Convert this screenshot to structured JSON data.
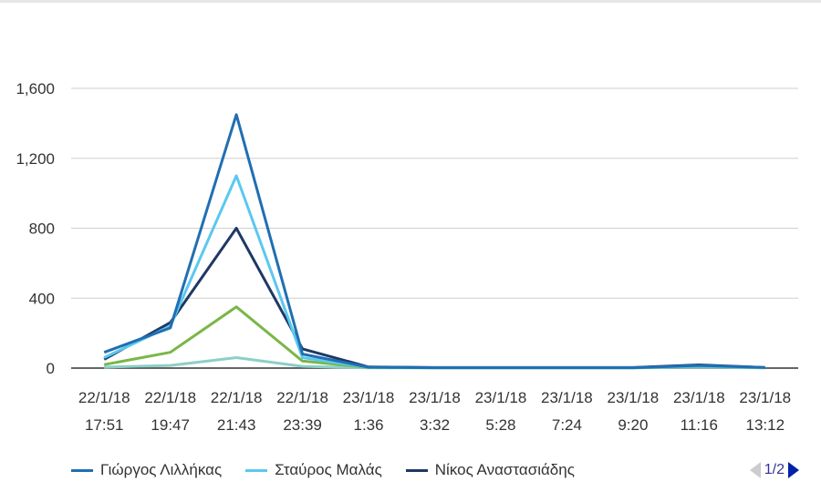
{
  "chart_data": {
    "type": "line",
    "title": "",
    "xlabel": "",
    "ylabel": "",
    "categories": [
      [
        "22/1/18",
        "17:51"
      ],
      [
        "22/1/18",
        "19:47"
      ],
      [
        "22/1/18",
        "21:43"
      ],
      [
        "22/1/18",
        "23:39"
      ],
      [
        "23/1/18",
        "1:36"
      ],
      [
        "23/1/18",
        "3:32"
      ],
      [
        "23/1/18",
        "5:28"
      ],
      [
        "23/1/18",
        "7:24"
      ],
      [
        "23/1/18",
        "9:20"
      ],
      [
        "23/1/18",
        "11:16"
      ],
      [
        "23/1/18",
        "13:12"
      ]
    ],
    "yticks": [
      "0",
      "400",
      "800",
      "1,200",
      "1,600"
    ],
    "ylim": [
      0,
      1600
    ],
    "grid": true,
    "legend_position": "bottom",
    "series": [
      {
        "name": "Γιώργος Λιλλήκας",
        "color": "#1f6fb2",
        "values": [
          90,
          230,
          1450,
          80,
          5,
          2,
          2,
          2,
          2,
          15,
          3
        ]
      },
      {
        "name": "Σταύρος Μαλάς",
        "color": "#5bc8ef",
        "values": [
          60,
          240,
          1100,
          60,
          4,
          2,
          2,
          2,
          2,
          10,
          2
        ]
      },
      {
        "name": "Νίκος Αναστασιάδης",
        "color": "#1f3864",
        "values": [
          50,
          260,
          800,
          110,
          6,
          3,
          3,
          3,
          3,
          18,
          3
        ]
      },
      {
        "name": "",
        "color": "#7ab648",
        "values": [
          20,
          90,
          350,
          40,
          3,
          2,
          2,
          2,
          2,
          8,
          2
        ]
      },
      {
        "name": "",
        "color": "#8ccfc7",
        "values": [
          5,
          15,
          60,
          10,
          1,
          1,
          1,
          1,
          1,
          5,
          1
        ]
      }
    ],
    "legend_visible": [
      0,
      1,
      2
    ],
    "pager": "1/2"
  }
}
